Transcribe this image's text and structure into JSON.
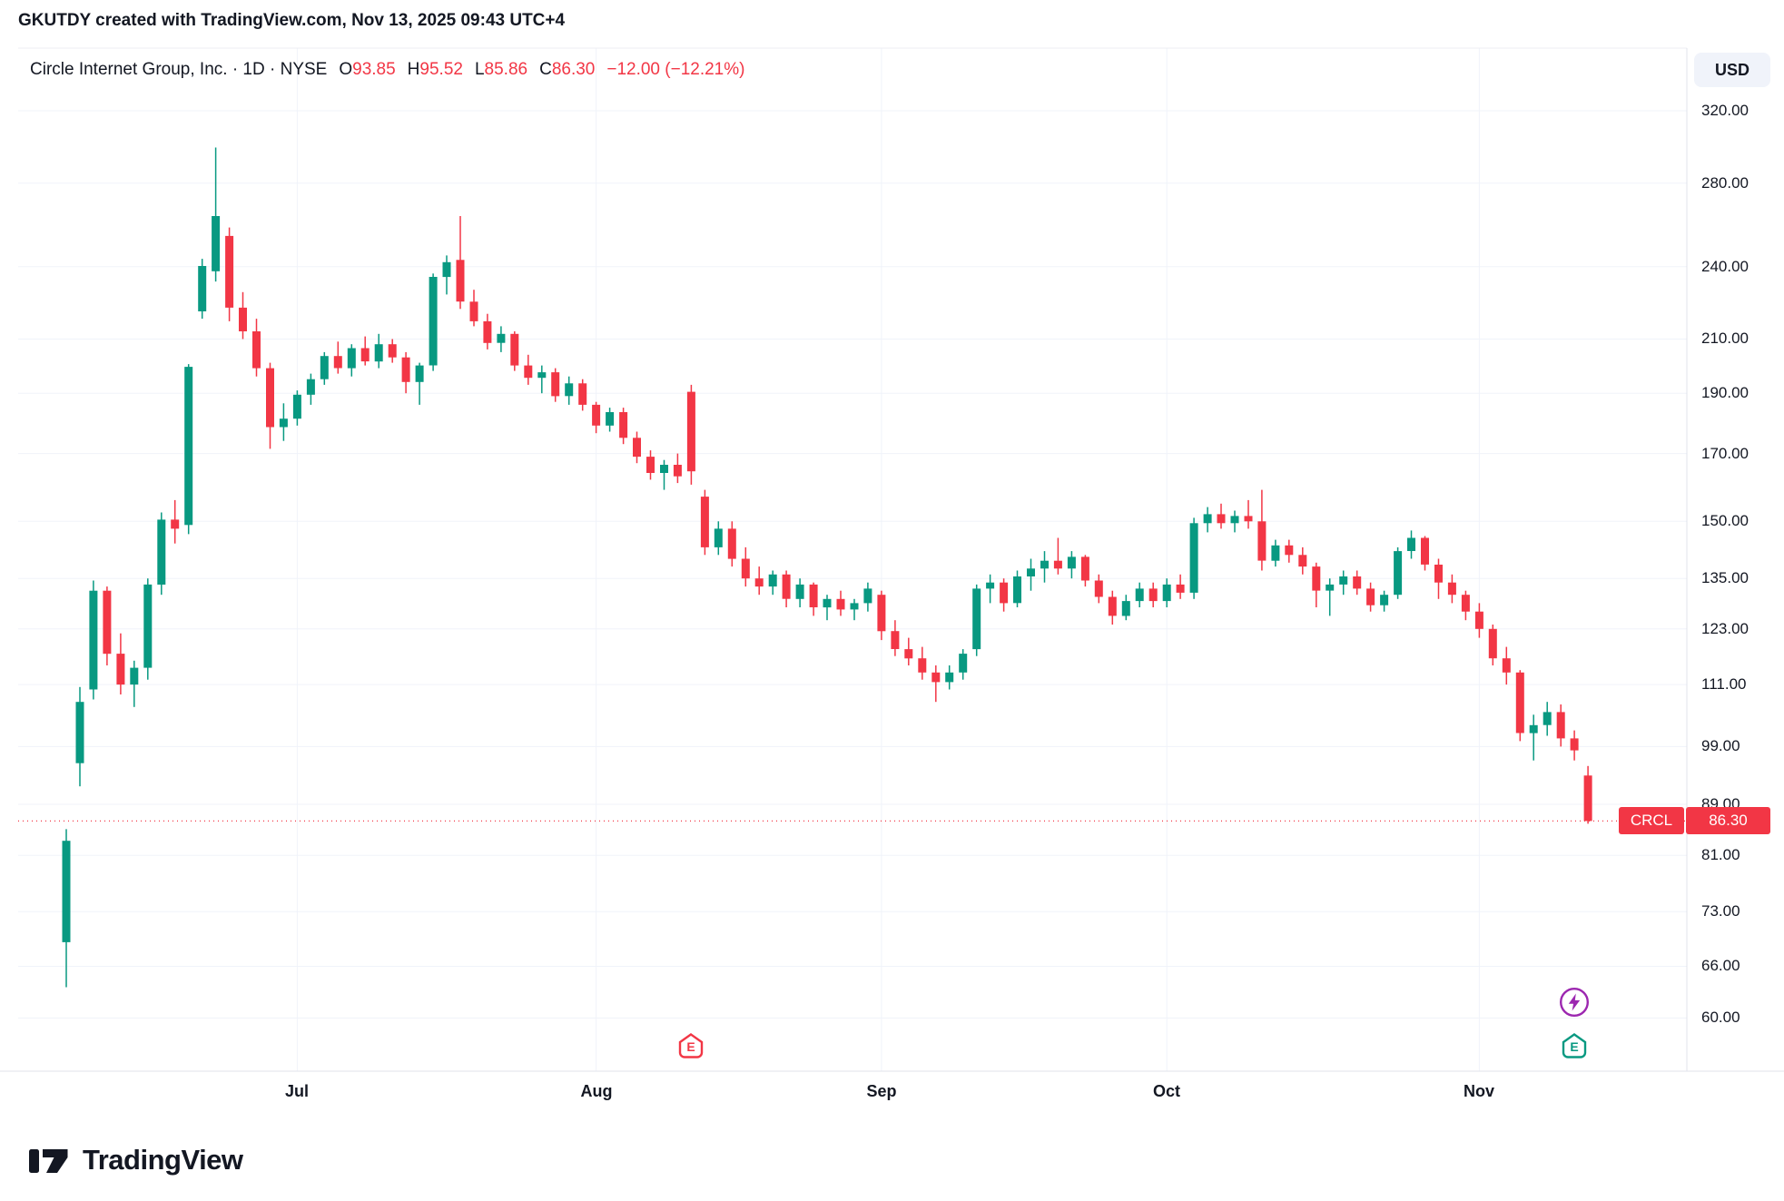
{
  "attribution": "GKUTDY created with TradingView.com, Nov 13, 2025 09:43 UTC+4",
  "header": {
    "symbol_title": "Circle Internet Group, Inc. · 1D · NYSE",
    "ohlc": [
      {
        "label": "O",
        "value": "93.85"
      },
      {
        "label": "H",
        "value": "95.52"
      },
      {
        "label": "L",
        "value": "85.86"
      },
      {
        "label": "C",
        "value": "86.30"
      }
    ],
    "change": "−12.00 (−12.21%)",
    "currency_button": "USD"
  },
  "price_label": {
    "symbol": "CRCL",
    "value": "86.30"
  },
  "markers": {
    "earnings_label": "E"
  },
  "footer": {
    "brand": "TradingView"
  },
  "colors": {
    "up": "#089981",
    "down": "#F23645",
    "text": "#131722",
    "event_purple": "#9C27B0",
    "grid": "#f0f3fa",
    "axis_border": "#e0e3eb"
  },
  "chart_data": {
    "type": "candlestick",
    "title": "Circle Internet Group, Inc.",
    "symbol": "CRCL",
    "exchange": "NYSE",
    "interval": "1D",
    "currency": "USD",
    "price_scale": "log",
    "grid": true,
    "ylim": [
      57,
      330
    ],
    "y_ticks": [
      320,
      280,
      240,
      210,
      190,
      170,
      150,
      135,
      123,
      111,
      99,
      89,
      81,
      73,
      66,
      60
    ],
    "x_month_labels": [
      {
        "label": "Jul",
        "candle_index": 17
      },
      {
        "label": "Aug",
        "candle_index": 39
      },
      {
        "label": "Sep",
        "candle_index": 60
      },
      {
        "label": "Oct",
        "candle_index": 81
      },
      {
        "label": "Nov",
        "candle_index": 104
      }
    ],
    "last_price": 86.3,
    "prev_close": 98.3,
    "ohlc_readout": {
      "open": 93.85,
      "high": 95.52,
      "low": 85.86,
      "close": 86.3,
      "change": -12.0,
      "change_pct": -12.21
    },
    "events": [
      {
        "type": "earnings",
        "candle_index": 46,
        "color": "#F23645"
      },
      {
        "type": "earnings",
        "candle_index": 111,
        "color": "#089981"
      },
      {
        "type": "upcoming-event",
        "candle_index": 111,
        "color": "#9C27B0"
      }
    ],
    "columns": [
      "date",
      "open",
      "high",
      "low",
      "close"
    ],
    "candles": [
      [
        "2025-06-05",
        69.0,
        85.0,
        63.5,
        83.2
      ],
      [
        "2025-06-06",
        96.0,
        110.5,
        92.0,
        107.5
      ],
      [
        "2025-06-09",
        110.0,
        134.5,
        108.0,
        132.0
      ],
      [
        "2025-06-10",
        132.0,
        133.0,
        115.0,
        117.5
      ],
      [
        "2025-06-11",
        117.5,
        122.0,
        109.0,
        111.0
      ],
      [
        "2025-06-12",
        111.0,
        116.0,
        106.5,
        114.5
      ],
      [
        "2025-06-13",
        114.5,
        135.0,
        112.0,
        133.5
      ],
      [
        "2025-06-16",
        133.5,
        152.5,
        131.0,
        150.5
      ],
      [
        "2025-06-17",
        150.5,
        156.0,
        144.0,
        148.0
      ],
      [
        "2025-06-18",
        149.0,
        200.5,
        146.5,
        199.5
      ],
      [
        "2025-06-20",
        221.0,
        243.5,
        218.0,
        240.3
      ],
      [
        "2025-06-23",
        238.0,
        299.0,
        233.5,
        263.5
      ],
      [
        "2025-06-24",
        254.0,
        258.0,
        217.0,
        222.5
      ],
      [
        "2025-06-25",
        222.5,
        229.0,
        210.0,
        213.0
      ],
      [
        "2025-06-26",
        213.0,
        218.0,
        196.0,
        199.0
      ],
      [
        "2025-06-27",
        199.0,
        201.0,
        171.5,
        178.5
      ],
      [
        "2025-06-30",
        178.5,
        186.5,
        174.0,
        181.3
      ],
      [
        "2025-07-01",
        181.3,
        191.0,
        179.0,
        189.5
      ],
      [
        "2025-07-02",
        189.5,
        197.0,
        186.0,
        195.0
      ],
      [
        "2025-07-03",
        195.0,
        205.0,
        193.0,
        203.5
      ],
      [
        "2025-07-07",
        203.5,
        209.0,
        197.0,
        199.0
      ],
      [
        "2025-07-08",
        199.0,
        208.0,
        196.0,
        206.5
      ],
      [
        "2025-07-09",
        206.5,
        211.0,
        200.0,
        201.5
      ],
      [
        "2025-07-10",
        201.5,
        212.0,
        199.0,
        208.0
      ],
      [
        "2025-07-11",
        208.0,
        210.0,
        201.0,
        203.0
      ],
      [
        "2025-07-14",
        203.0,
        205.0,
        190.0,
        194.0
      ],
      [
        "2025-07-15",
        194.0,
        201.0,
        186.0,
        200.0
      ],
      [
        "2025-07-16",
        200.0,
        237.0,
        198.0,
        235.5
      ],
      [
        "2025-07-17",
        235.5,
        245.0,
        228.0,
        242.0
      ],
      [
        "2025-07-18",
        243.0,
        263.5,
        222.0,
        225.0
      ],
      [
        "2025-07-21",
        225.0,
        230.0,
        215.0,
        217.0
      ],
      [
        "2025-07-22",
        217.0,
        220.0,
        206.0,
        208.5
      ],
      [
        "2025-07-23",
        208.5,
        215.0,
        205.0,
        212.0
      ],
      [
        "2025-07-24",
        212.0,
        213.0,
        198.0,
        200.0
      ],
      [
        "2025-07-25",
        200.0,
        204.0,
        193.0,
        195.5
      ],
      [
        "2025-07-28",
        195.5,
        200.0,
        190.0,
        197.5
      ],
      [
        "2025-07-29",
        197.5,
        199.0,
        187.0,
        189.0
      ],
      [
        "2025-07-30",
        189.0,
        196.0,
        186.0,
        193.5
      ],
      [
        "2025-07-31",
        193.5,
        195.0,
        184.0,
        186.0
      ],
      [
        "2025-08-01",
        186.0,
        187.0,
        176.5,
        179.0
      ],
      [
        "2025-08-04",
        179.0,
        185.0,
        177.0,
        183.5
      ],
      [
        "2025-08-05",
        183.5,
        185.0,
        173.0,
        175.0
      ],
      [
        "2025-08-06",
        175.0,
        177.0,
        167.0,
        169.0
      ],
      [
        "2025-08-07",
        169.0,
        171.0,
        162.0,
        164.0
      ],
      [
        "2025-08-08",
        164.0,
        168.0,
        159.0,
        166.5
      ],
      [
        "2025-08-11",
        166.5,
        170.0,
        161.0,
        163.0
      ],
      [
        "2025-08-12",
        190.5,
        193.0,
        160.5,
        164.5
      ],
      [
        "2025-08-13",
        157.0,
        159.0,
        141.0,
        143.0
      ],
      [
        "2025-08-14",
        143.0,
        150.0,
        141.0,
        148.0
      ],
      [
        "2025-08-15",
        148.0,
        150.0,
        138.0,
        140.0
      ],
      [
        "2025-08-18",
        140.0,
        143.0,
        133.0,
        135.0
      ],
      [
        "2025-08-19",
        135.0,
        138.0,
        131.0,
        133.0
      ],
      [
        "2025-08-20",
        133.0,
        137.0,
        131.0,
        136.0
      ],
      [
        "2025-08-21",
        136.0,
        137.0,
        128.0,
        130.0
      ],
      [
        "2025-08-22",
        130.0,
        135.0,
        128.0,
        133.5
      ],
      [
        "2025-08-25",
        133.5,
        134.0,
        126.0,
        128.0
      ],
      [
        "2025-08-26",
        128.0,
        131.0,
        125.0,
        130.0
      ],
      [
        "2025-08-27",
        130.0,
        132.0,
        126.0,
        127.5
      ],
      [
        "2025-08-28",
        127.5,
        130.0,
        125.0,
        129.0
      ],
      [
        "2025-08-29",
        129.0,
        134.0,
        127.0,
        132.5
      ],
      [
        "2025-09-02",
        131.0,
        132.0,
        120.5,
        122.5
      ],
      [
        "2025-09-03",
        122.5,
        125.0,
        117.0,
        118.5
      ],
      [
        "2025-09-04",
        118.5,
        121.0,
        115.0,
        116.5
      ],
      [
        "2025-09-05",
        116.5,
        119.0,
        112.0,
        113.5
      ],
      [
        "2025-09-08",
        113.5,
        115.0,
        107.5,
        111.5
      ],
      [
        "2025-09-09",
        111.5,
        115.0,
        110.0,
        113.5
      ],
      [
        "2025-09-10",
        113.5,
        118.5,
        112.0,
        117.5
      ],
      [
        "2025-09-11",
        118.5,
        133.5,
        117.0,
        132.5
      ],
      [
        "2025-09-12",
        132.5,
        136.0,
        129.0,
        134.0
      ],
      [
        "2025-09-15",
        134.0,
        135.0,
        127.0,
        129.0
      ],
      [
        "2025-09-16",
        129.0,
        137.0,
        128.0,
        135.5
      ],
      [
        "2025-09-17",
        135.5,
        140.0,
        132.0,
        137.5
      ],
      [
        "2025-09-18",
        137.5,
        142.0,
        134.0,
        139.5
      ],
      [
        "2025-09-19",
        139.5,
        145.5,
        136.0,
        137.5
      ],
      [
        "2025-09-22",
        137.5,
        142.0,
        135.0,
        140.5
      ],
      [
        "2025-09-23",
        140.5,
        141.0,
        133.0,
        134.5
      ],
      [
        "2025-09-24",
        134.5,
        136.0,
        129.0,
        130.5
      ],
      [
        "2025-09-25",
        130.5,
        132.0,
        124.0,
        126.0
      ],
      [
        "2025-09-26",
        126.0,
        131.0,
        125.0,
        129.5
      ],
      [
        "2025-09-29",
        129.5,
        134.0,
        128.0,
        132.5
      ],
      [
        "2025-09-30",
        132.5,
        134.0,
        128.0,
        129.5
      ],
      [
        "2025-10-01",
        129.5,
        135.0,
        128.0,
        133.5
      ],
      [
        "2025-10-02",
        133.5,
        136.0,
        130.0,
        131.5
      ],
      [
        "2025-10-03",
        131.5,
        151.0,
        130.0,
        149.5
      ],
      [
        "2025-10-06",
        149.5,
        154.0,
        147.0,
        152.0
      ],
      [
        "2025-10-07",
        152.0,
        155.0,
        148.0,
        149.5
      ],
      [
        "2025-10-08",
        149.5,
        153.0,
        147.0,
        151.5
      ],
      [
        "2025-10-09",
        151.5,
        156.0,
        148.0,
        150.0
      ],
      [
        "2025-10-10",
        150.0,
        159.0,
        137.0,
        139.5
      ],
      [
        "2025-10-13",
        139.5,
        145.0,
        138.0,
        143.5
      ],
      [
        "2025-10-14",
        143.5,
        145.0,
        139.0,
        141.0
      ],
      [
        "2025-10-15",
        141.0,
        143.0,
        136.0,
        138.0
      ],
      [
        "2025-10-16",
        138.0,
        139.0,
        128.0,
        132.0
      ],
      [
        "2025-10-17",
        132.0,
        135.0,
        126.0,
        133.5
      ],
      [
        "2025-10-20",
        133.5,
        137.0,
        131.0,
        135.5
      ],
      [
        "2025-10-21",
        135.5,
        137.0,
        131.0,
        132.5
      ],
      [
        "2025-10-22",
        132.5,
        134.0,
        127.0,
        128.5
      ],
      [
        "2025-10-23",
        128.5,
        132.0,
        127.0,
        131.0
      ],
      [
        "2025-10-24",
        131.0,
        143.0,
        130.0,
        142.0
      ],
      [
        "2025-10-27",
        142.0,
        147.5,
        140.0,
        145.5
      ],
      [
        "2025-10-28",
        145.5,
        146.0,
        137.0,
        138.5
      ],
      [
        "2025-10-29",
        138.5,
        140.0,
        130.0,
        134.0
      ],
      [
        "2025-10-30",
        134.0,
        136.0,
        129.0,
        131.0
      ],
      [
        "2025-10-31",
        131.0,
        132.0,
        125.0,
        127.0
      ],
      [
        "2025-11-03",
        127.0,
        129.0,
        121.0,
        123.0
      ],
      [
        "2025-11-04",
        123.0,
        124.0,
        115.0,
        116.5
      ],
      [
        "2025-11-05",
        116.5,
        119.0,
        111.0,
        113.5
      ],
      [
        "2025-11-06",
        113.5,
        114.0,
        100.0,
        101.5
      ],
      [
        "2025-11-07",
        101.5,
        105.0,
        96.5,
        103.0
      ],
      [
        "2025-11-10",
        103.0,
        107.5,
        101.0,
        105.5
      ],
      [
        "2025-11-11",
        105.5,
        107.0,
        99.0,
        100.5
      ],
      [
        "2025-11-12",
        100.5,
        102.0,
        96.5,
        98.3
      ],
      [
        "2025-11-13",
        93.85,
        95.52,
        85.86,
        86.3
      ]
    ]
  }
}
